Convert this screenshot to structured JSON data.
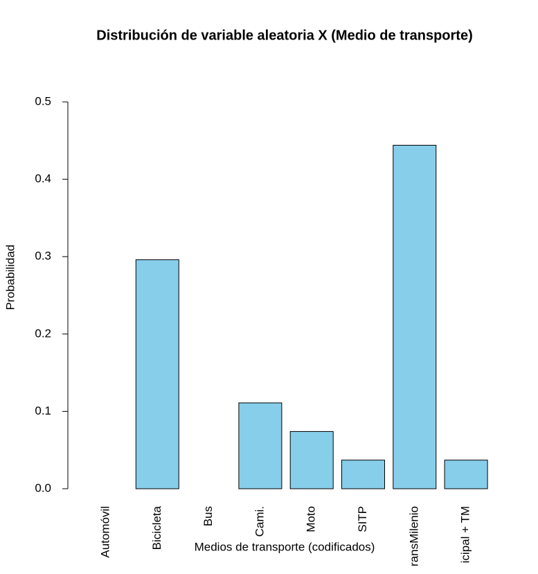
{
  "chart_data": {
    "type": "bar",
    "title": "Distribución de variable aleatoria X (Medio de transporte)",
    "x_label": "Medios de transporte (codificados)",
    "y_label": "Probabilidad",
    "categories": [
      "Automóvil",
      "Bicicleta",
      "Bus",
      "Cami.",
      "Moto",
      "SITP",
      "ransMilenio",
      "icipal + TM"
    ],
    "values": [
      0,
      0.296,
      0,
      0.111,
      0.074,
      0.037,
      0.444,
      0.037
    ],
    "color": "#87ceeb",
    "ylim": [
      0,
      0.5
    ],
    "yticks": [
      {
        "value": 0,
        "label": "0.0"
      },
      0.1,
      0.2,
      0.3,
      0.4,
      0.5
    ],
    "grid": false
  }
}
